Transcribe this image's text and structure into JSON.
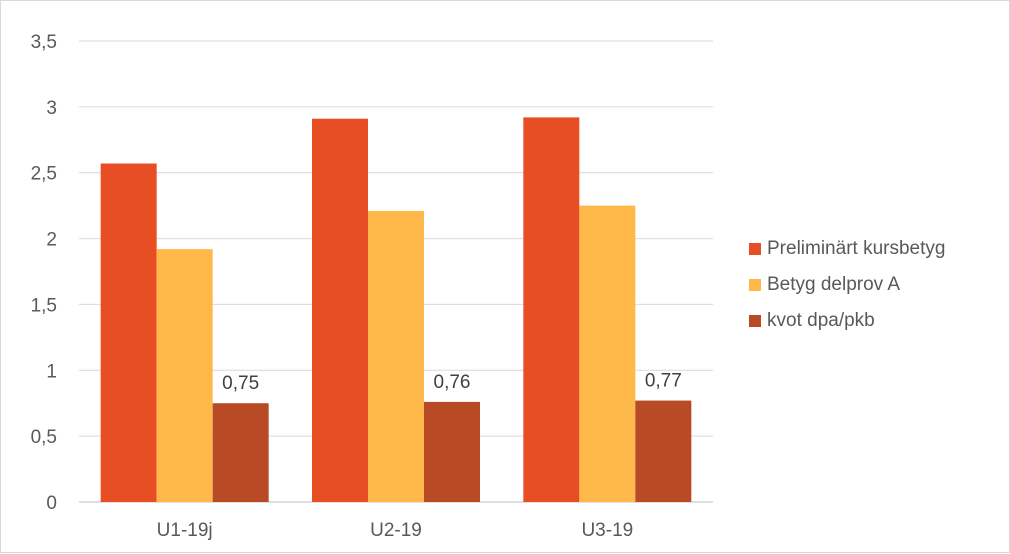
{
  "chart_data": {
    "type": "bar",
    "categories": [
      "U1-19j",
      "U2-19",
      "U3-19"
    ],
    "series": [
      {
        "name": "Preliminärt kursbetyg",
        "values": [
          2.57,
          2.91,
          2.92
        ],
        "color": "#E84E23",
        "labels": [
          "",
          "",
          ""
        ]
      },
      {
        "name": "Betyg delprov A",
        "values": [
          1.92,
          2.21,
          2.25
        ],
        "color": "#FFB94A",
        "labels": [
          "",
          "",
          ""
        ]
      },
      {
        "name": "kvot dpa/pkb",
        "values": [
          0.75,
          0.76,
          0.77
        ],
        "color": "#B84A25",
        "labels": [
          "0,75",
          "0,76",
          "0,77"
        ]
      }
    ],
    "yticks": [
      "0",
      "0,5",
      "1",
      "1,5",
      "2",
      "2,5",
      "3",
      "3,5"
    ],
    "ylim": [
      0,
      3.5
    ],
    "grid": true,
    "legend_position": "right",
    "title": "",
    "xlabel": "",
    "ylabel": ""
  }
}
